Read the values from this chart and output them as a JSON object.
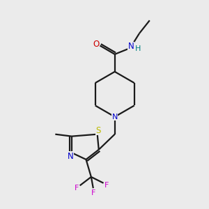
{
  "bg_color": "#ebebeb",
  "bond_color": "#1a1a1a",
  "N_color": "#0000cc",
  "O_color": "#cc0000",
  "S_color": "#bbbb00",
  "F_color": "#cc00cc",
  "NH_color": "#008080",
  "line_width": 1.6,
  "figsize": [
    3.0,
    3.0
  ],
  "dpi": 100,
  "xlim": [
    0,
    10
  ],
  "ylim": [
    0,
    10
  ]
}
